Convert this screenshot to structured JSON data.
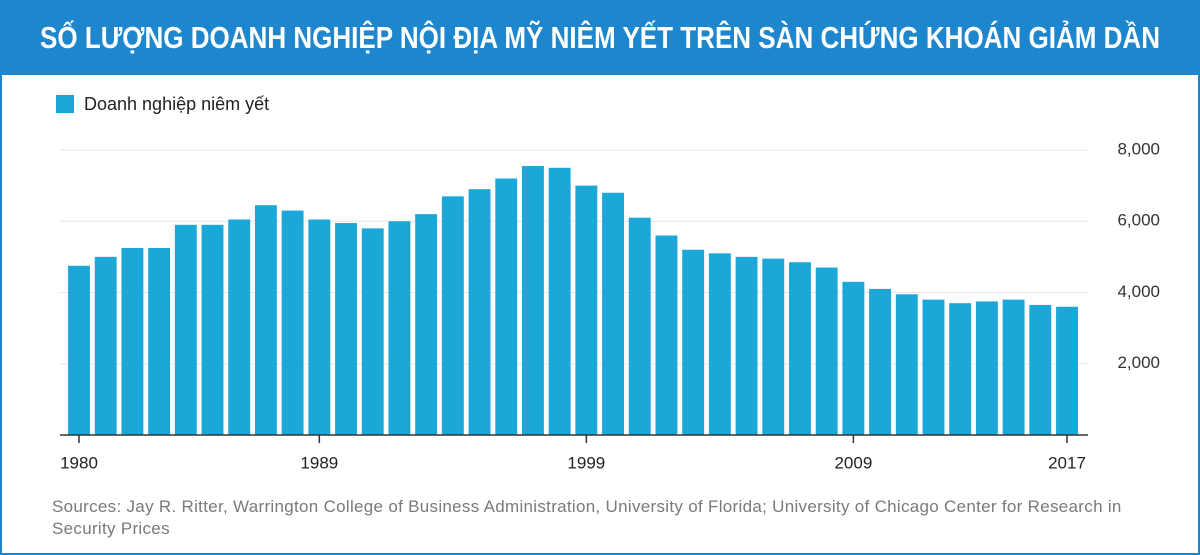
{
  "chart_data": {
    "type": "bar",
    "title": "SỐ LƯỢNG DOANH NGHIỆP NỘI ĐỊA MỸ NIÊM YẾT TRÊN SÀN CHỨNG KHOÁN GIẢM DẦN",
    "source": "Sources: Jay R. Ritter, Warrington College of Business Administration, University of Florida; University of Chicago Center for Research in Security Prices",
    "x": [
      1980,
      1981,
      1982,
      1983,
      1984,
      1985,
      1986,
      1987,
      1988,
      1989,
      1990,
      1991,
      1992,
      1993,
      1994,
      1995,
      1996,
      1997,
      1998,
      1999,
      2000,
      2001,
      2002,
      2003,
      2004,
      2005,
      2006,
      2007,
      2008,
      2009,
      2010,
      2011,
      2012,
      2013,
      2014,
      2015,
      2016,
      2017
    ],
    "series": [
      {
        "name": "Doanh nghiệp niêm yết",
        "color": "#1ba8d8",
        "values": [
          4750,
          5000,
          5250,
          5250,
          5900,
          5900,
          6050,
          6450,
          6300,
          6050,
          5950,
          5800,
          6000,
          6200,
          6700,
          6900,
          7200,
          7550,
          7500,
          7000,
          6800,
          6100,
          5600,
          5200,
          5100,
          5000,
          4950,
          4850,
          4700,
          4300,
          4100,
          3950,
          3800,
          3700,
          3750,
          3800,
          3650,
          3600
        ]
      }
    ],
    "xlim": [
      1980,
      2017
    ],
    "xticks": [
      1980,
      1989,
      1999,
      2009,
      2017
    ],
    "ylim": [
      0,
      8000
    ],
    "yticks": [
      {
        "value": 2000,
        "label": "2,000"
      },
      {
        "value": 4000,
        "label": "4,000"
      },
      {
        "value": 6000,
        "label": "6,000"
      },
      {
        "value": 8000,
        "label": "8,000"
      }
    ],
    "grid": true,
    "legend": "top-left"
  }
}
